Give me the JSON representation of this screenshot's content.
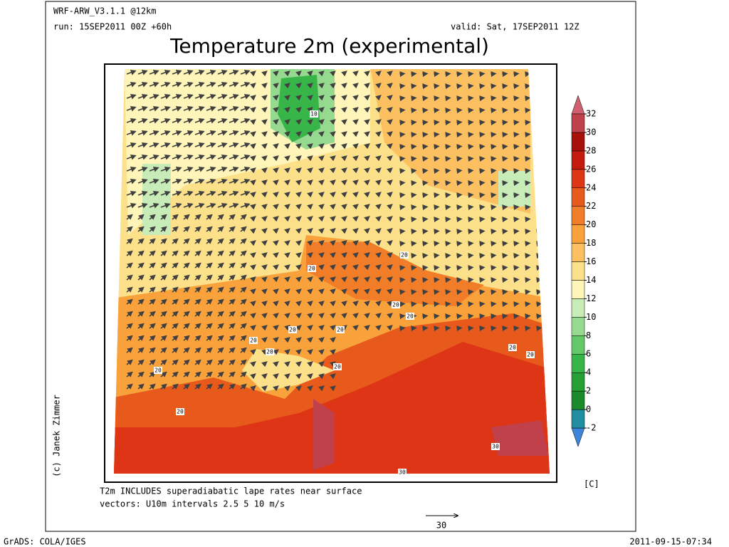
{
  "header": {
    "model": "WRF-ARW_V3.1.1 @12km",
    "run": "run: 15SEP2011 00Z +60h",
    "valid": "valid: Sat, 17SEP2011 12Z",
    "title": "Temperature 2m (experimental)"
  },
  "map": {
    "contour_labels": [
      "10",
      "20",
      "20",
      "20",
      "20",
      "20",
      "20",
      "20",
      "20",
      "20",
      "20",
      "20",
      "20",
      "20",
      "30",
      "30"
    ]
  },
  "colorbar": {
    "ticks": [
      -2,
      0,
      2,
      4,
      6,
      8,
      10,
      12,
      14,
      16,
      18,
      20,
      22,
      24,
      26,
      28,
      30,
      32
    ],
    "colors": [
      "#3d85d8",
      "#1f8ea0",
      "#1b8a2a",
      "#24a034",
      "#38b548",
      "#64c868",
      "#96da90",
      "#c8ecb8",
      "#fff5b8",
      "#fde08a",
      "#fcc060",
      "#f9a23c",
      "#f17d28",
      "#e85a1c",
      "#dd3516",
      "#c41a10",
      "#a8100c",
      "#c0404c",
      "#d06070"
    ],
    "unit": "[C]"
  },
  "notes": [
    "T2m INCLUDES superadiabatic lape rates near surface",
    "vectors: U10m intervals 2.5 5 10 m/s"
  ],
  "vector_key": "30",
  "credit": "(c) Janek Zimmer",
  "footer": {
    "left": "GrADS: COLA/IGES",
    "right": "2011-09-15-07:34"
  }
}
